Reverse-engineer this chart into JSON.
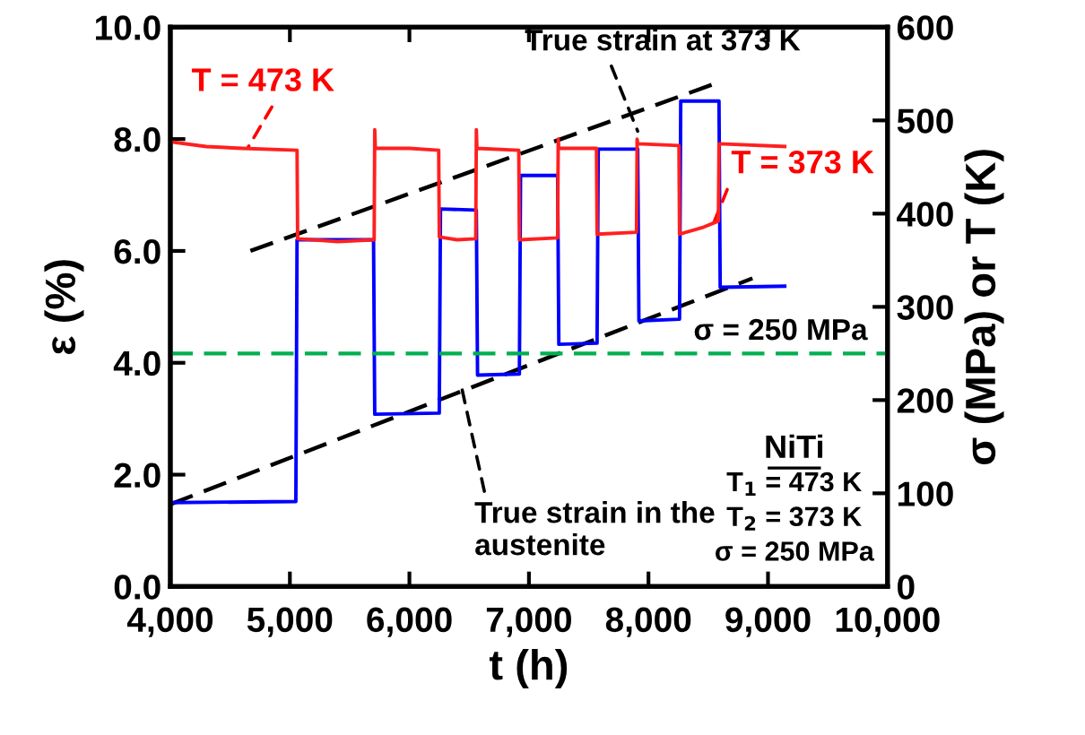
{
  "chart_data": {
    "type": "line",
    "xlabel": "t (h)",
    "ylabel": "ε (%)",
    "y2label": "σ (MPa) or T (K)",
    "xlim": [
      4000,
      10000
    ],
    "xticks": [
      {
        "value": 4000,
        "label": "4,000"
      },
      {
        "value": 5000,
        "label": "5,000"
      },
      {
        "value": 6000,
        "label": "6,000"
      },
      {
        "value": 7000,
        "label": "7,000"
      },
      {
        "value": 8000,
        "label": "8,000"
      },
      {
        "value": 9000,
        "label": "9,000"
      },
      {
        "value": 10000,
        "label": "10,000"
      }
    ],
    "ylim": [
      0,
      10
    ],
    "yticks": [
      {
        "value": 0,
        "label": "0.0"
      },
      {
        "value": 2,
        "label": "2.0"
      },
      {
        "value": 4,
        "label": "4.0"
      },
      {
        "value": 6,
        "label": "6.0"
      },
      {
        "value": 8,
        "label": "8.0"
      },
      {
        "value": 10,
        "label": "10.0"
      }
    ],
    "y2lim": [
      0,
      600
    ],
    "y2ticks": [
      0,
      100,
      200,
      300,
      400,
      500,
      600
    ],
    "grid": false,
    "legend": false,
    "marker": "none",
    "series": [
      {
        "color": "#ff2020",
        "axis": "y2",
        "x": [
          4000,
          4300,
          4600,
          5060,
          5065,
          5400,
          5705,
          5710,
          5715,
          6000,
          6245,
          6250,
          6400,
          6555,
          6560,
          6565,
          6915,
          6920,
          7240,
          7245,
          7250,
          7565,
          7570,
          7900,
          7905,
          7910,
          8255,
          8260,
          8450,
          8585,
          8590,
          9140
        ],
        "values": [
          477,
          472,
          470,
          468,
          373,
          370,
          372,
          490,
          470,
          470,
          468,
          375,
          372,
          373,
          490,
          470,
          468,
          372,
          374,
          480,
          470,
          470,
          378,
          380,
          480,
          475,
          473,
          378,
          385,
          392,
          475,
          472
        ]
      },
      {
        "color": "#0000ff",
        "x": [
          4000,
          5050,
          5060,
          5700,
          5710,
          6250,
          6260,
          6560,
          6570,
          6920,
          6930,
          7240,
          7250,
          7570,
          7580,
          7910,
          7920,
          8260,
          8270,
          8590,
          8600,
          9140
        ],
        "values": [
          1.5,
          1.52,
          6.2,
          6.2,
          3.08,
          3.1,
          6.75,
          6.73,
          3.78,
          3.8,
          7.35,
          7.35,
          4.33,
          4.35,
          7.82,
          7.82,
          4.75,
          4.78,
          8.68,
          8.68,
          5.35,
          5.37
        ]
      },
      {
        "color": "#000000",
        "line_style": "dashed",
        "x": [
          4670,
          8530
        ],
        "values": [
          6.0,
          8.97
        ]
      },
      {
        "color": "#000000",
        "line_style": "dashed",
        "x": [
          4000,
          8870
        ],
        "values": [
          1.47,
          5.51
        ]
      }
    ],
    "ref_lines": [
      {
        "axis": "y2",
        "value": 250,
        "label": "σ = 250 MPa",
        "color": "#00b050",
        "line_style": "dashed"
      }
    ],
    "annotations": [
      {
        "text": "T = 473 K",
        "x": 4650,
        "y": 7.85
      },
      {
        "text": "True strain at 373 K",
        "x": 7910,
        "y": 8.14
      },
      {
        "text": "T = 373 K",
        "x": 8540,
        "y": 6.47
      },
      {
        "text": "True strain in the\naustenite",
        "x": 6440,
        "y": 3.53
      },
      "NiTi",
      "T$_{1}$ = 473 K",
      "T$_{2}$ = 373 K",
      "σ = 250 MPa"
    ]
  }
}
